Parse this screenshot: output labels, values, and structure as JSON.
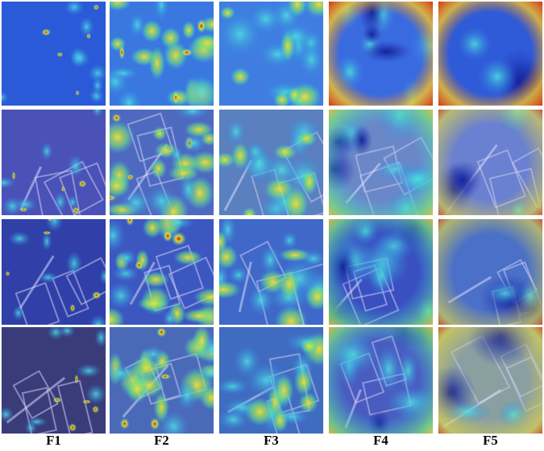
{
  "columns": [
    "F1",
    "F2",
    "F3",
    "F4",
    "F5"
  ]
}
